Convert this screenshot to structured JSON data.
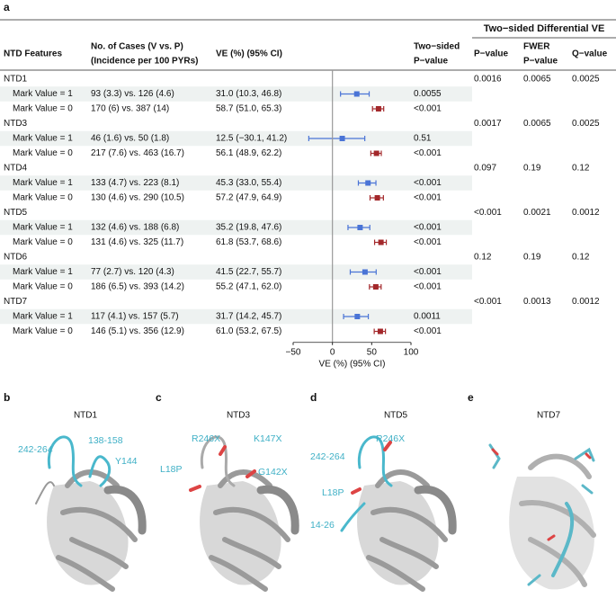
{
  "panel_a": {
    "letter": "a",
    "group_header": "Two−sided Differential VE",
    "headers": {
      "feature": "NTD Features",
      "cases": [
        "No. of Cases (V vs. P)",
        "(Incidence per 100 PYRs)"
      ],
      "ve": "VE (%) (95% CI)",
      "p": [
        "Two−sided",
        "P−value"
      ],
      "diff_p": "P−value",
      "fwer": [
        "FWER",
        "P−value"
      ],
      "q": "Q−value"
    },
    "forest": {
      "type": "forest",
      "xlim": [
        -50,
        100
      ],
      "xticks": [
        {
          "value": -50,
          "label": "−50"
        },
        0,
        50,
        100
      ],
      "xlabel": "VE (%) (95% CI)"
    },
    "groups": [
      {
        "name": "NTD1",
        "p": "0.0016",
        "fwer": "0.0065",
        "q": "0.0025",
        "rows": [
          {
            "label": "Mark Value = 1",
            "cases": "93 (3.3) vs. 126 (4.6)",
            "ve_label": "31.0 (10.3, 46.8)",
            "ve": 31.0,
            "lo": 10.3,
            "hi": 46.8,
            "p": "0.0055",
            "color": "#4a74d6"
          },
          {
            "label": "Mark Value = 0",
            "cases": "170 (6) vs. 387 (14)",
            "ve_label": "58.7 (51.0, 65.3)",
            "ve": 58.7,
            "lo": 51.0,
            "hi": 65.3,
            "p": "<0.001",
            "color": "#a3282b"
          }
        ]
      },
      {
        "name": "NTD3",
        "p": "0.0017",
        "fwer": "0.0065",
        "q": "0.0025",
        "rows": [
          {
            "label": "Mark Value = 1",
            "cases": "46 (1.6) vs. 50 (1.8)",
            "ve_label": "12.5 (−30.1, 41.2)",
            "ve": 12.5,
            "lo": -30.1,
            "hi": 41.2,
            "p": "0.51",
            "color": "#4a74d6"
          },
          {
            "label": "Mark Value = 0",
            "cases": "217 (7.6) vs. 463 (16.7)",
            "ve_label": "56.1 (48.9, 62.2)",
            "ve": 56.1,
            "lo": 48.9,
            "hi": 62.2,
            "p": "<0.001",
            "color": "#a3282b"
          }
        ]
      },
      {
        "name": "NTD4",
        "p": "0.097",
        "fwer": "0.19",
        "q": "0.12",
        "rows": [
          {
            "label": "Mark Value = 1",
            "cases": "133 (4.7) vs. 223 (8.1)",
            "ve_label": "45.3 (33.0, 55.4)",
            "ve": 45.3,
            "lo": 33.0,
            "hi": 55.4,
            "p": "<0.001",
            "color": "#4a74d6"
          },
          {
            "label": "Mark Value = 0",
            "cases": "130 (4.6) vs. 290 (10.5)",
            "ve_label": "57.2 (47.9, 64.9)",
            "ve": 57.2,
            "lo": 47.9,
            "hi": 64.9,
            "p": "<0.001",
            "color": "#a3282b"
          }
        ]
      },
      {
        "name": "NTD5",
        "p": "<0.001",
        "fwer": "0.0021",
        "q": "0.0012",
        "rows": [
          {
            "label": "Mark Value = 1",
            "cases": "132 (4.6) vs. 188 (6.8)",
            "ve_label": "35.2 (19.8, 47.6)",
            "ve": 35.2,
            "lo": 19.8,
            "hi": 47.6,
            "p": "<0.001",
            "color": "#4a74d6"
          },
          {
            "label": "Mark Value = 0",
            "cases": "131 (4.6) vs. 325 (11.7)",
            "ve_label": "61.8 (53.7, 68.6)",
            "ve": 61.8,
            "lo": 53.7,
            "hi": 68.6,
            "p": "<0.001",
            "color": "#a3282b"
          }
        ]
      },
      {
        "name": "NTD6",
        "p": "0.12",
        "fwer": "0.19",
        "q": "0.12",
        "rows": [
          {
            "label": "Mark Value = 1",
            "cases": "77 (2.7) vs. 120 (4.3)",
            "ve_label": "41.5 (22.7, 55.7)",
            "ve": 41.5,
            "lo": 22.7,
            "hi": 55.7,
            "p": "<0.001",
            "color": "#4a74d6"
          },
          {
            "label": "Mark Value = 0",
            "cases": "186 (6.5) vs. 393 (14.2)",
            "ve_label": "55.2 (47.1, 62.0)",
            "ve": 55.2,
            "lo": 47.1,
            "hi": 62.0,
            "p": "<0.001",
            "color": "#a3282b"
          }
        ]
      },
      {
        "name": "NTD7",
        "p": "<0.001",
        "fwer": "0.0013",
        "q": "0.0012",
        "rows": [
          {
            "label": "Mark Value = 1",
            "cases": "117 (4.1) vs. 157 (5.7)",
            "ve_label": "31.7 (14.2, 45.7)",
            "ve": 31.7,
            "lo": 14.2,
            "hi": 45.7,
            "p": "0.0011",
            "color": "#4a74d6"
          },
          {
            "label": "Mark Value = 0",
            "cases": "146 (5.1) vs. 356 (12.9)",
            "ve_label": "61.0 (53.2, 67.5)",
            "ve": 61.0,
            "lo": 53.2,
            "hi": 67.5,
            "p": "<0.001",
            "color": "#a3282b"
          }
        ]
      }
    ]
  },
  "panels": [
    {
      "letter": "b",
      "title": "NTD1",
      "labels": [
        "242-264",
        "138-158",
        "Y144"
      ]
    },
    {
      "letter": "c",
      "title": "NTD3",
      "labels": [
        "R246X",
        "K147X",
        "L18P",
        "G142X"
      ]
    },
    {
      "letter": "d",
      "title": "NTD5",
      "labels": [
        "242-264",
        "R246X",
        "L18P",
        "14-26"
      ]
    },
    {
      "letter": "e",
      "title": "NTD7",
      "labels": []
    }
  ]
}
